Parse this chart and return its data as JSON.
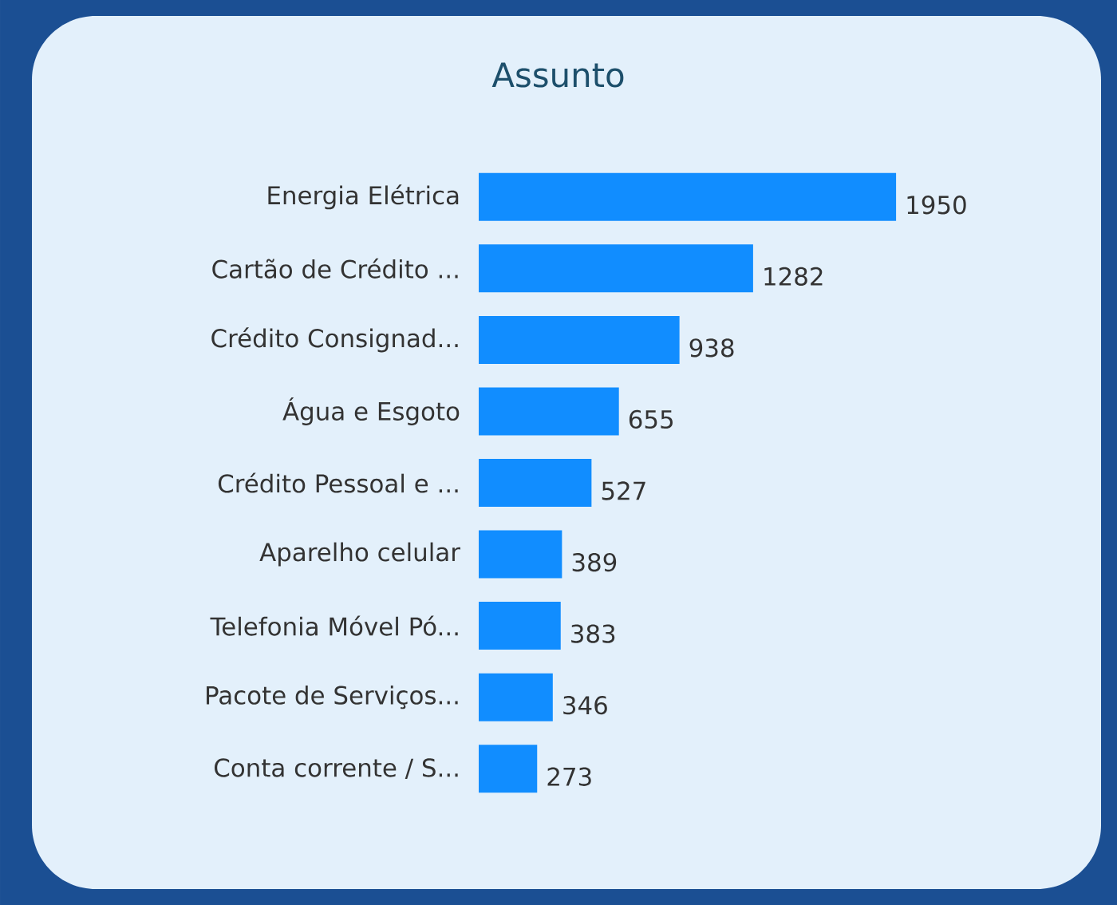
{
  "chart_data": {
    "type": "bar",
    "orientation": "horizontal",
    "title": "Assunto",
    "categories": [
      "Energia Elétrica",
      "Cartão de Crédito ...",
      "Crédito Consignad...",
      "Água e Esgoto",
      "Crédito Pessoal e ...",
      "Aparelho celular",
      "Telefonia Móvel Pó...",
      "Pacote de Serviços...",
      "Conta corrente / S..."
    ],
    "values": [
      1950,
      1282,
      938,
      655,
      527,
      389,
      383,
      346,
      273
    ],
    "color": "#118dff",
    "data_labels": true
  }
}
